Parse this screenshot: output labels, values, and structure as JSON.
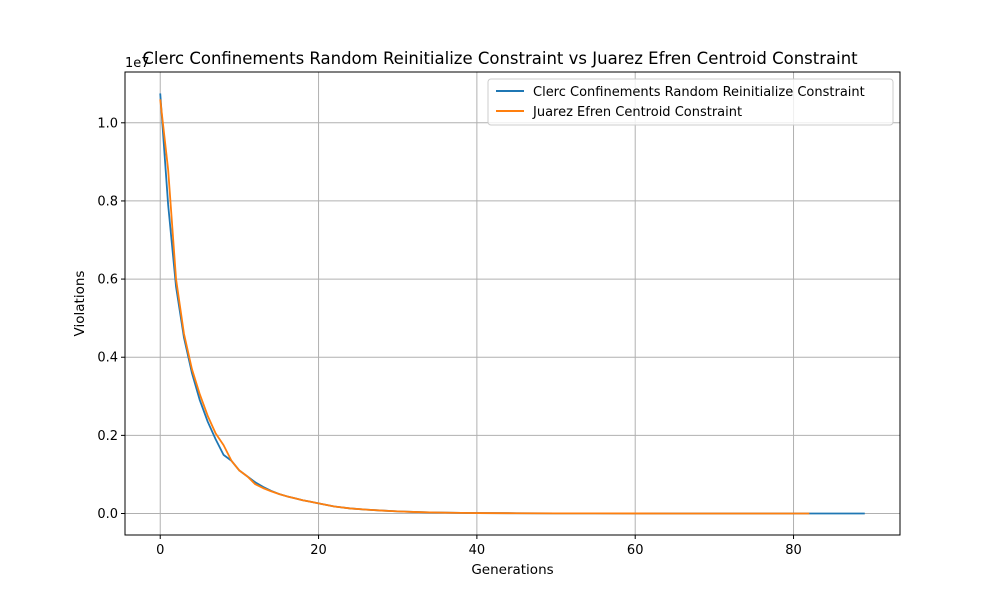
{
  "chart_data": {
    "type": "line",
    "title": "Clerc Confinements Random Reinitialize Constraint vs Juarez Efren Centroid Constraint",
    "xlabel": "Generations",
    "ylabel": "Violations",
    "y_offset_label": "1e7",
    "xlim": [
      -4.45,
      93.45
    ],
    "ylim": [
      -550000,
      11300000
    ],
    "x_ticks": [
      0,
      20,
      40,
      60,
      80
    ],
    "x_tick_labels": [
      "0",
      "20",
      "40",
      "60",
      "80"
    ],
    "y_ticks": [
      0,
      2000000,
      4000000,
      6000000,
      8000000,
      10000000
    ],
    "y_tick_labels": [
      "0.0",
      "0.2",
      "0.4",
      "0.6",
      "0.8",
      "1.0"
    ],
    "grid": true,
    "legend_position": "top-right",
    "series": [
      {
        "name": "Clerc Confinements Random Reinitialize Constraint",
        "color": "#1f77b4",
        "x": [
          0,
          1,
          2,
          3,
          4,
          5,
          6,
          7,
          8,
          9,
          10,
          11,
          12,
          13,
          14,
          15,
          16,
          17,
          18,
          19,
          20,
          22,
          24,
          26,
          28,
          30,
          32,
          34,
          36,
          38,
          40,
          45,
          50,
          55,
          60,
          65,
          70,
          75,
          80,
          85,
          89
        ],
        "y": [
          10750000,
          7900000,
          5800000,
          4500000,
          3600000,
          2900000,
          2350000,
          1900000,
          1500000,
          1350000,
          1100000,
          950000,
          800000,
          680000,
          580000,
          500000,
          440000,
          390000,
          340000,
          300000,
          260000,
          180000,
          130000,
          100000,
          75000,
          55000,
          40000,
          30000,
          22000,
          16000,
          12000,
          7000,
          4000,
          2500,
          1500,
          1000,
          700,
          500,
          300,
          200,
          100
        ]
      },
      {
        "name": "Juarez Efren Centroid Constraint",
        "color": "#ff7f0e",
        "x": [
          0,
          1,
          2,
          3,
          4,
          5,
          6,
          7,
          8,
          9,
          10,
          11,
          12,
          13,
          14,
          15,
          16,
          17,
          18,
          19,
          20,
          22,
          24,
          26,
          28,
          30,
          32,
          34,
          36,
          38,
          40,
          45,
          50,
          55,
          60,
          65,
          70,
          75,
          82
        ],
        "y": [
          10600000,
          8800000,
          6000000,
          4600000,
          3700000,
          3050000,
          2500000,
          2050000,
          1750000,
          1350000,
          1100000,
          950000,
          750000,
          650000,
          570000,
          500000,
          440000,
          390000,
          340000,
          300000,
          260000,
          180000,
          130000,
          100000,
          75000,
          55000,
          40000,
          30000,
          22000,
          16000,
          12000,
          7000,
          4000,
          2500,
          1500,
          1000,
          700,
          500,
          300
        ]
      }
    ]
  }
}
